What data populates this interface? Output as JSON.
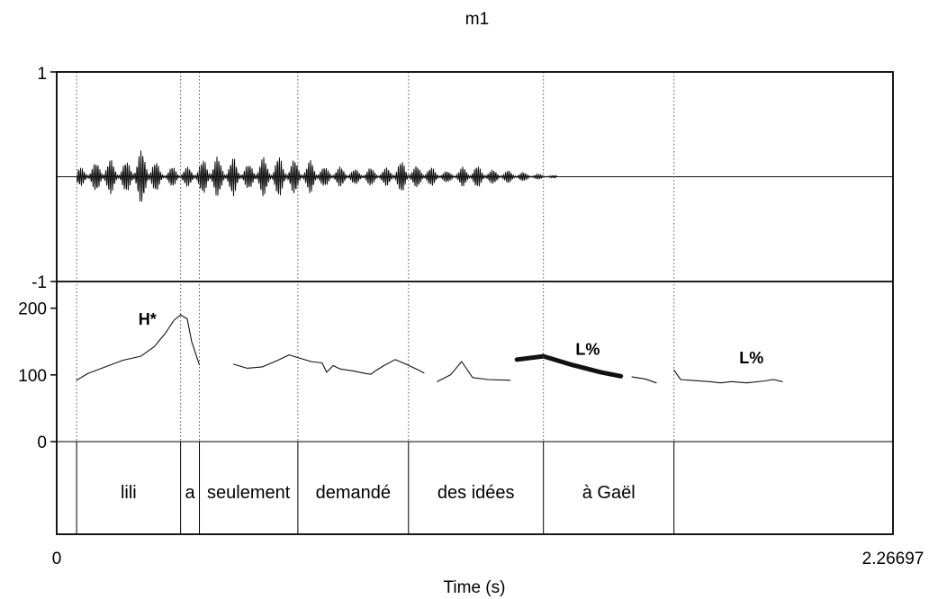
{
  "chart_data": {
    "type": "line",
    "title": "m1",
    "xlabel": "Time (s)",
    "xlim": [
      0,
      2.26697
    ],
    "x_tick_labels": [
      "0",
      "2.26697"
    ],
    "colors": {
      "ink": "#000000",
      "grid": "#555555",
      "background": "#ffffff"
    },
    "waveform": {
      "ylim": [
        -1,
        1
      ],
      "y_tick_labels": [
        "1",
        "-1"
      ],
      "envelope": {
        "t": [
          0.09,
          0.16,
          0.22,
          0.28,
          0.33,
          0.36,
          0.41,
          0.47,
          0.5,
          0.53,
          0.56,
          0.6,
          0.64,
          0.7,
          0.76,
          0.8,
          0.84,
          0.88,
          0.92,
          0.97,
          1.0,
          1.04,
          1.08,
          1.12,
          1.16,
          1.2,
          1.24,
          1.3,
          1.36,
          1.42,
          1.46,
          1.52,
          1.56,
          1.62,
          1.66,
          1.72,
          1.78,
          1.84,
          1.9,
          1.96,
          2.04,
          2.12,
          2.2,
          2.26
        ],
        "amp": [
          0.08,
          0.12,
          0.19,
          0.13,
          0.16,
          0.26,
          0.25,
          0.09,
          0.07,
          0.11,
          0.08,
          0.1,
          0.13,
          0.23,
          0.15,
          0.19,
          0.11,
          0.13,
          0.21,
          0.14,
          0.21,
          0.15,
          0.17,
          0.11,
          0.19,
          0.1,
          0.09,
          0.1,
          0.07,
          0.09,
          0.07,
          0.11,
          0.16,
          0.1,
          0.12,
          0.07,
          0.05,
          0.1,
          0.11,
          0.07,
          0.06,
          0.04,
          0.02,
          0.01
        ]
      }
    },
    "pitch": {
      "ylim": [
        0,
        240
      ],
      "y_ticks": [
        0,
        100,
        200
      ],
      "y_tick_labels": [
        "0",
        "100",
        "200"
      ],
      "segments": [
        {
          "t": [
            0.09,
            0.14,
            0.22,
            0.3,
            0.38,
            0.44,
            0.49,
            0.53,
            0.56,
            0.59,
            0.61,
            0.645
          ],
          "f0": [
            92,
            102,
            112,
            122,
            128,
            142,
            162,
            182,
            190,
            184,
            150,
            115
          ],
          "bold": false
        },
        {
          "t": [
            0.8,
            0.86,
            0.93,
            1.0,
            1.05,
            1.09,
            1.15,
            1.2,
            1.22,
            1.25,
            1.28,
            1.34,
            1.4,
            1.42,
            1.44,
            1.48,
            1.53,
            1.58,
            1.63,
            1.66
          ],
          "f0": [
            116,
            110,
            112,
            122,
            130,
            126,
            120,
            118,
            104,
            114,
            109,
            106,
            102,
            101,
            106,
            114,
            123,
            116,
            108,
            103
          ],
          "bold": false
        },
        {
          "t": [
            1.72,
            1.78,
            1.83,
            1.88,
            1.95,
            2.05
          ],
          "f0": [
            90,
            100,
            120,
            96,
            93,
            92
          ],
          "bold": false
        },
        {
          "t": [
            2.08,
            2.2,
            2.33,
            2.46,
            2.55
          ],
          "f0": [
            123,
            128,
            115,
            104,
            98
          ],
          "bold": true
        },
        {
          "t": [
            2.6,
            2.66,
            2.71
          ],
          "f0": [
            97,
            94,
            88
          ],
          "bold": false
        },
        {
          "t": [
            2.79,
            2.82,
            2.95,
            3.0,
            3.05,
            3.12,
            3.2,
            3.24,
            3.28
          ],
          "f0": [
            107,
            93,
            90,
            88,
            90,
            88,
            91,
            93,
            90
          ],
          "bold": false
        }
      ],
      "annotations": [
        {
          "text": "H*",
          "t": 0.41,
          "f0": 175
        },
        {
          "text": "L%",
          "t": 2.4,
          "f0": 130
        },
        {
          "text": "L%",
          "t": 3.14,
          "f0": 117
        }
      ]
    },
    "words": {
      "boundaries": [
        0.09,
        0.56,
        0.645,
        1.09,
        1.59,
        2.2,
        2.79
      ],
      "labels": [
        "lili",
        "a",
        "seulement",
        "demandé",
        "des idées",
        "à Gaël"
      ],
      "segment_bounds": [
        [
          0.09,
          0.56
        ],
        [
          0.56,
          0.645
        ],
        [
          0.645,
          1.09
        ],
        [
          1.09,
          1.59
        ],
        [
          1.59,
          2.2
        ],
        [
          2.2,
          2.79
        ]
      ]
    }
  }
}
